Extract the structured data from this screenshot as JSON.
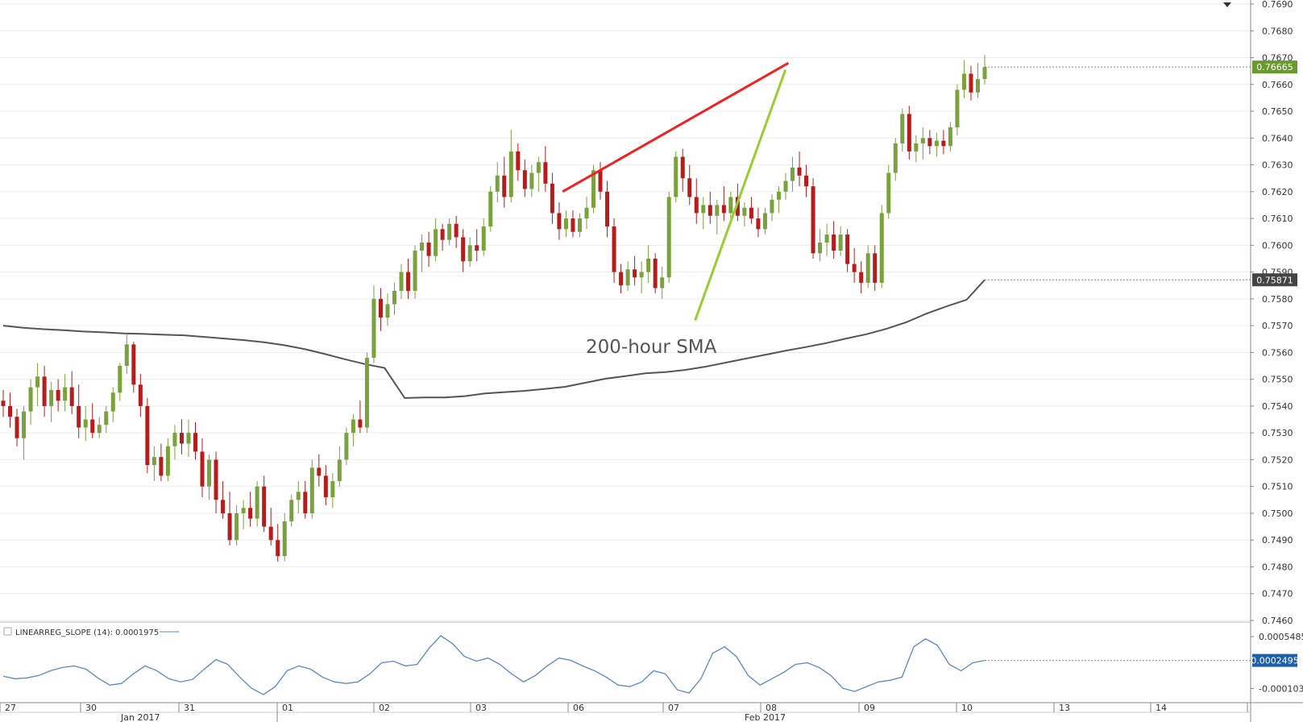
{
  "chart_data": {
    "type": "candlestick",
    "price_axis": {
      "ylim": [
        0.746,
        0.769
      ],
      "ticks": [
        "0.7690",
        "0.7680",
        "0.7670",
        "0.7660",
        "0.7650",
        "0.7640",
        "0.7630",
        "0.7620",
        "0.7610",
        "0.7600",
        "0.7590",
        "0.7580",
        "0.7570",
        "0.7560",
        "0.7550",
        "0.7540",
        "0.7530",
        "0.7520",
        "0.7510",
        "0.7500",
        "0.7490",
        "0.7480",
        "0.7470",
        "0.7460"
      ],
      "last_price_label": "0.76665",
      "last_price_value": 0.76665,
      "sma_label": "0.75871",
      "sma_value": 0.75871
    },
    "time_axis": {
      "day_labels": [
        "27",
        "30",
        "31",
        "01",
        "02",
        "03",
        "06",
        "07",
        "08",
        "09",
        "10",
        "13",
        "14"
      ],
      "month_labels": [
        "Jan 2017",
        "Feb 2017"
      ]
    },
    "series": [
      {
        "name": "200-hour SMA",
        "color": "#555555",
        "points": [
          [
            0,
            0.757
          ],
          [
            10,
            0.75692
          ],
          [
            20,
            0.75687
          ],
          [
            30,
            0.75683
          ],
          [
            40,
            0.75678
          ],
          [
            50,
            0.75675
          ],
          [
            60,
            0.75671
          ],
          [
            70,
            0.75669
          ],
          [
            80,
            0.75666
          ],
          [
            90,
            0.75664
          ],
          [
            100,
            0.75658
          ],
          [
            110,
            0.75652
          ],
          [
            120,
            0.75646
          ],
          [
            130,
            0.75638
          ],
          [
            140,
            0.75627
          ],
          [
            150,
            0.75613
          ],
          [
            160,
            0.75595
          ],
          [
            170,
            0.75575
          ],
          [
            180,
            0.75557
          ],
          [
            190,
            0.75542
          ],
          [
            200,
            0.7543
          ],
          [
            210,
            0.75432
          ],
          [
            220,
            0.75432
          ],
          [
            230,
            0.75437
          ],
          [
            240,
            0.75447
          ],
          [
            250,
            0.75452
          ],
          [
            260,
            0.75457
          ],
          [
            270,
            0.75464
          ],
          [
            280,
            0.75472
          ],
          [
            290,
            0.75487
          ],
          [
            300,
            0.75502
          ],
          [
            310,
            0.75512
          ],
          [
            320,
            0.75522
          ],
          [
            330,
            0.75527
          ],
          [
            340,
            0.75535
          ],
          [
            350,
            0.75547
          ],
          [
            360,
            0.75562
          ],
          [
            370,
            0.75577
          ],
          [
            380,
            0.75592
          ],
          [
            390,
            0.75607
          ],
          [
            400,
            0.7562
          ],
          [
            410,
            0.75635
          ],
          [
            420,
            0.75652
          ],
          [
            430,
            0.75668
          ],
          [
            440,
            0.75688
          ],
          [
            450,
            0.75713
          ],
          [
            460,
            0.75745
          ],
          [
            470,
            0.75772
          ],
          [
            480,
            0.75797
          ],
          [
            489,
            0.75871
          ]
        ]
      }
    ],
    "candles": [
      [
        0.7542,
        0.7546,
        0.7536,
        0.754
      ],
      [
        0.754,
        0.7545,
        0.7532,
        0.7536
      ],
      [
        0.7536,
        0.7539,
        0.7525,
        0.7528
      ],
      [
        0.7528,
        0.754,
        0.752,
        0.7538
      ],
      [
        0.7538,
        0.755,
        0.7533,
        0.7547
      ],
      [
        0.7547,
        0.7556,
        0.754,
        0.7551
      ],
      [
        0.7551,
        0.7555,
        0.7536,
        0.754
      ],
      [
        0.754,
        0.7549,
        0.7534,
        0.7546
      ],
      [
        0.7546,
        0.755,
        0.7538,
        0.7542
      ],
      [
        0.7542,
        0.7552,
        0.7538,
        0.7547
      ],
      [
        0.7547,
        0.7553,
        0.7537,
        0.754
      ],
      [
        0.754,
        0.7548,
        0.7528,
        0.7532
      ],
      [
        0.7532,
        0.754,
        0.7527,
        0.7535
      ],
      [
        0.7535,
        0.7541,
        0.7528,
        0.753
      ],
      [
        0.753,
        0.7536,
        0.7528,
        0.7533
      ],
      [
        0.7533,
        0.754,
        0.753,
        0.7538
      ],
      [
        0.7538,
        0.7547,
        0.7534,
        0.7545
      ],
      [
        0.7545,
        0.7556,
        0.7542,
        0.7555
      ],
      [
        0.7555,
        0.7567,
        0.7552,
        0.7563
      ],
      [
        0.7563,
        0.7564,
        0.7545,
        0.7548
      ],
      [
        0.7548,
        0.7552,
        0.7536,
        0.754
      ],
      [
        0.754,
        0.7543,
        0.7515,
        0.7518
      ],
      [
        0.7518,
        0.7525,
        0.7512,
        0.7521
      ],
      [
        0.7521,
        0.7526,
        0.7512,
        0.7514
      ],
      [
        0.7514,
        0.7528,
        0.7512,
        0.7525
      ],
      [
        0.7525,
        0.7533,
        0.752,
        0.753
      ],
      [
        0.753,
        0.7535,
        0.7522,
        0.7526
      ],
      [
        0.7526,
        0.7535,
        0.7521,
        0.753
      ],
      [
        0.753,
        0.7534,
        0.752,
        0.7523
      ],
      [
        0.7523,
        0.7528,
        0.7506,
        0.751
      ],
      [
        0.751,
        0.7522,
        0.7505,
        0.752
      ],
      [
        0.752,
        0.7523,
        0.75,
        0.7505
      ],
      [
        0.7505,
        0.7512,
        0.7498,
        0.75
      ],
      [
        0.75,
        0.7508,
        0.7488,
        0.749
      ],
      [
        0.749,
        0.7503,
        0.7488,
        0.75
      ],
      [
        0.75,
        0.7505,
        0.7494,
        0.7502
      ],
      [
        0.7502,
        0.7508,
        0.7495,
        0.7498
      ],
      [
        0.7498,
        0.7512,
        0.7495,
        0.751
      ],
      [
        0.751,
        0.7514,
        0.7493,
        0.7495
      ],
      [
        0.7495,
        0.7502,
        0.7488,
        0.749
      ],
      [
        0.749,
        0.7496,
        0.7482,
        0.7484
      ],
      [
        0.7484,
        0.75,
        0.7482,
        0.7497
      ],
      [
        0.7497,
        0.7507,
        0.7495,
        0.7505
      ],
      [
        0.7505,
        0.7512,
        0.75,
        0.7508
      ],
      [
        0.7508,
        0.7512,
        0.7498,
        0.75
      ],
      [
        0.75,
        0.752,
        0.7498,
        0.7517
      ],
      [
        0.7517,
        0.7522,
        0.751,
        0.7514
      ],
      [
        0.7514,
        0.7518,
        0.7503,
        0.7506
      ],
      [
        0.7506,
        0.7515,
        0.7502,
        0.7512
      ],
      [
        0.7512,
        0.7525,
        0.751,
        0.752
      ],
      [
        0.752,
        0.7532,
        0.7518,
        0.753
      ],
      [
        0.753,
        0.7537,
        0.7525,
        0.7535
      ],
      [
        0.7535,
        0.7542,
        0.753,
        0.7532
      ],
      [
        0.7532,
        0.756,
        0.753,
        0.7558
      ],
      [
        0.7558,
        0.7585,
        0.7556,
        0.758
      ],
      [
        0.758,
        0.7584,
        0.7568,
        0.7573
      ],
      [
        0.7573,
        0.7582,
        0.757,
        0.7578
      ],
      [
        0.7578,
        0.7586,
        0.7574,
        0.7583
      ],
      [
        0.7583,
        0.7593,
        0.758,
        0.759
      ],
      [
        0.759,
        0.7595,
        0.758,
        0.7583
      ],
      [
        0.7583,
        0.76,
        0.758,
        0.7598
      ],
      [
        0.7598,
        0.7604,
        0.759,
        0.7601
      ],
      [
        0.7601,
        0.7605,
        0.7592,
        0.7596
      ],
      [
        0.7596,
        0.761,
        0.7594,
        0.7606
      ],
      [
        0.7606,
        0.7608,
        0.7598,
        0.7602
      ],
      [
        0.7602,
        0.761,
        0.76,
        0.7608
      ],
      [
        0.7608,
        0.7611,
        0.7599,
        0.7603
      ],
      [
        0.7603,
        0.7606,
        0.759,
        0.7594
      ],
      [
        0.7594,
        0.7603,
        0.7592,
        0.76
      ],
      [
        0.76,
        0.7606,
        0.7594,
        0.7598
      ],
      [
        0.7598,
        0.761,
        0.7596,
        0.7607
      ],
      [
        0.7607,
        0.7622,
        0.7605,
        0.762
      ],
      [
        0.762,
        0.7631,
        0.7616,
        0.7626
      ],
      [
        0.7626,
        0.7633,
        0.7614,
        0.7618
      ],
      [
        0.7618,
        0.7643,
        0.7616,
        0.7635
      ],
      [
        0.7635,
        0.7638,
        0.7624,
        0.7628
      ],
      [
        0.7628,
        0.7632,
        0.7618,
        0.7621
      ],
      [
        0.7621,
        0.763,
        0.7618,
        0.7627
      ],
      [
        0.7627,
        0.7633,
        0.762,
        0.7631
      ],
      [
        0.7631,
        0.7637,
        0.762,
        0.7623
      ],
      [
        0.7623,
        0.7627,
        0.7608,
        0.7612
      ],
      [
        0.7612,
        0.7616,
        0.7602,
        0.7606
      ],
      [
        0.7606,
        0.7613,
        0.7603,
        0.761
      ],
      [
        0.761,
        0.7613,
        0.7603,
        0.7605
      ],
      [
        0.7605,
        0.7612,
        0.7603,
        0.761
      ],
      [
        0.761,
        0.7618,
        0.7606,
        0.7614
      ],
      [
        0.7614,
        0.763,
        0.7612,
        0.7628
      ],
      [
        0.7628,
        0.7631,
        0.7617,
        0.762
      ],
      [
        0.762,
        0.7624,
        0.7603,
        0.7607
      ],
      [
        0.7607,
        0.761,
        0.7586,
        0.759
      ],
      [
        0.759,
        0.7593,
        0.7582,
        0.7585
      ],
      [
        0.7585,
        0.7594,
        0.7583,
        0.7591
      ],
      [
        0.7591,
        0.7596,
        0.7585,
        0.7588
      ],
      [
        0.7588,
        0.7594,
        0.7582,
        0.759
      ],
      [
        0.759,
        0.76,
        0.7586,
        0.7595
      ],
      [
        0.7595,
        0.7597,
        0.7582,
        0.7584
      ],
      [
        0.7584,
        0.7592,
        0.758,
        0.7588
      ],
      [
        0.7588,
        0.762,
        0.7586,
        0.7618
      ],
      [
        0.7618,
        0.7635,
        0.7616,
        0.7633
      ],
      [
        0.7633,
        0.7636,
        0.762,
        0.7625
      ],
      [
        0.7625,
        0.763,
        0.7615,
        0.7618
      ],
      [
        0.7618,
        0.7625,
        0.7608,
        0.7612
      ],
      [
        0.7612,
        0.7618,
        0.7606,
        0.7615
      ],
      [
        0.7615,
        0.762,
        0.7608,
        0.7611
      ],
      [
        0.7611,
        0.7617,
        0.7604,
        0.7615
      ],
      [
        0.7615,
        0.7622,
        0.7609,
        0.7612
      ],
      [
        0.7612,
        0.762,
        0.761,
        0.7618
      ],
      [
        0.7618,
        0.7623,
        0.7609,
        0.7611
      ],
      [
        0.7611,
        0.7616,
        0.7607,
        0.7614
      ],
      [
        0.7614,
        0.7618,
        0.7608,
        0.761
      ],
      [
        0.761,
        0.7614,
        0.7603,
        0.7606
      ],
      [
        0.7606,
        0.7614,
        0.7604,
        0.7612
      ],
      [
        0.7612,
        0.7619,
        0.7609,
        0.7617
      ],
      [
        0.7617,
        0.7622,
        0.7612,
        0.762
      ],
      [
        0.762,
        0.7627,
        0.7617,
        0.7624
      ],
      [
        0.7624,
        0.7633,
        0.762,
        0.7629
      ],
      [
        0.7629,
        0.7635,
        0.7622,
        0.7626
      ],
      [
        0.7626,
        0.763,
        0.7618,
        0.7622
      ],
      [
        0.7622,
        0.7625,
        0.7595,
        0.7597
      ],
      [
        0.7597,
        0.7606,
        0.7594,
        0.7601
      ],
      [
        0.7601,
        0.7608,
        0.7596,
        0.7604
      ],
      [
        0.7604,
        0.7609,
        0.7595,
        0.7598
      ],
      [
        0.7598,
        0.7607,
        0.7596,
        0.7604
      ],
      [
        0.7604,
        0.7606,
        0.759,
        0.7593
      ],
      [
        0.7593,
        0.7599,
        0.7586,
        0.759
      ],
      [
        0.759,
        0.7594,
        0.7582,
        0.7586
      ],
      [
        0.7586,
        0.76,
        0.7584,
        0.7597
      ],
      [
        0.7597,
        0.76,
        0.7583,
        0.7586
      ],
      [
        0.7586,
        0.7615,
        0.7584,
        0.7612
      ],
      [
        0.7612,
        0.763,
        0.761,
        0.7627
      ],
      [
        0.7627,
        0.764,
        0.7624,
        0.7638
      ],
      [
        0.7638,
        0.7651,
        0.7635,
        0.7649
      ],
      [
        0.7649,
        0.7652,
        0.7632,
        0.7635
      ],
      [
        0.7635,
        0.7641,
        0.7631,
        0.7638
      ],
      [
        0.7638,
        0.7644,
        0.7632,
        0.764
      ],
      [
        0.764,
        0.7643,
        0.7634,
        0.7637
      ],
      [
        0.7637,
        0.7642,
        0.7633,
        0.7639
      ],
      [
        0.7639,
        0.7643,
        0.7634,
        0.7637
      ],
      [
        0.7637,
        0.7646,
        0.7635,
        0.7644
      ],
      [
        0.7644,
        0.766,
        0.7641,
        0.7658
      ],
      [
        0.7658,
        0.7669,
        0.7655,
        0.7664
      ],
      [
        0.7664,
        0.7667,
        0.7654,
        0.7657
      ],
      [
        0.7657,
        0.7668,
        0.7655,
        0.7662
      ],
      [
        0.7662,
        0.7671,
        0.766,
        0.76665
      ]
    ],
    "indicator": {
      "name": "LINEARREG_SLOPE (14): 0.0001975",
      "ylim": [
        -0.0002,
        0.00065
      ],
      "ticks": [
        "0.0005485",
        "-0.0001033"
      ],
      "last_label": "0.0002495",
      "last_value": 0.0002495,
      "color": "#5b88c9",
      "values": [
        5e-05,
        2e-05,
        3e-05,
        6e-05,
        0.00012,
        0.00016,
        0.00018,
        0.00014,
        3e-05,
        -6e-05,
        -4e-05,
        8e-05,
        0.00018,
        0.00012,
        2e-05,
        -2e-05,
        1e-05,
        0.00014,
        0.00026,
        0.0002,
        4e-05,
        -0.0001,
        -0.00018,
        -8e-05,
        0.00012,
        0.00018,
        0.00014,
        4e-05,
        -2e-05,
        -4e-05,
        -2e-05,
        8e-05,
        0.00022,
        0.00024,
        0.00018,
        0.0002,
        0.0004,
        0.00056,
        0.00046,
        0.0003,
        0.00024,
        0.00028,
        0.0002,
        8e-05,
        -2e-05,
        6e-05,
        0.00018,
        0.00028,
        0.00025,
        0.00018,
        0.00012,
        4e-05,
        -6e-05,
        -8e-05,
        -2e-05,
        0.00012,
        8e-05,
        -0.00012,
        -0.00016,
        2e-05,
        0.00034,
        0.00042,
        0.0003,
        6e-05,
        -6e-05,
        2e-05,
        0.0001,
        0.0002,
        0.00022,
        0.00016,
        6e-05,
        -0.0001,
        -0.00014,
        -8e-05,
        -2e-05,
        0.0,
        4e-05,
        0.00042,
        0.00052,
        0.00044,
        0.0002,
        0.00012,
        0.00022,
        0.00025
      ]
    },
    "trendlines": [
      {
        "name": "resistance",
        "color": "#ee2222",
        "from": [
          0.762,
          0.57
        ],
        "to": [
          0.7668,
          0.8
        ]
      },
      {
        "name": "support",
        "color": "#9acd32",
        "from": [
          0.7572,
          0.705
        ],
        "to": [
          0.76655,
          0.797
        ]
      }
    ],
    "annotation": "200-hour SMA",
    "colors": {
      "up": "#7aa23c",
      "down": "#b71c1c",
      "sma": "#555555",
      "last_tag": "#6a9a2c",
      "sma_tag": "#444444"
    }
  }
}
